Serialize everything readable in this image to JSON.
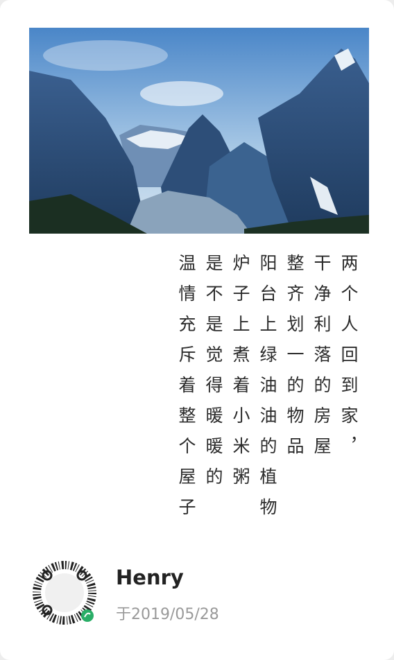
{
  "poem": {
    "lines": [
      "两个人回到家，",
      "干净利落的房屋",
      "整齐划一的物品",
      "阳台上绿油油的植物",
      "炉子上煮着小米粥",
      "是不是觉得暖暖的",
      "温情充斥着整个屋子"
    ]
  },
  "footer": {
    "name": "Henry",
    "date": "于2019/05/28"
  }
}
